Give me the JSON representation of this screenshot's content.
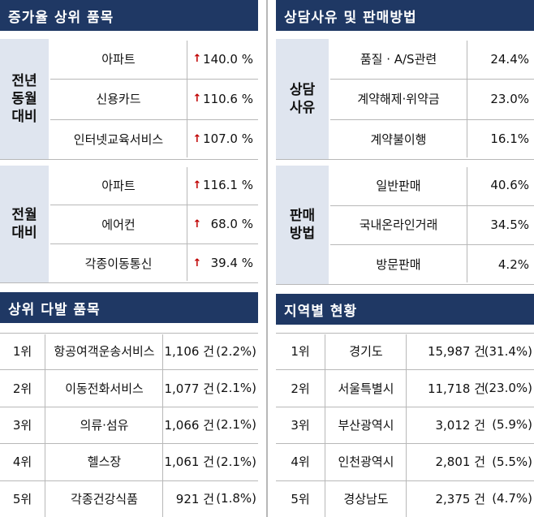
{
  "increase": {
    "title": "증가율 상위 품목",
    "groups": [
      {
        "label": [
          "전년",
          "동월",
          "대비"
        ],
        "rows": [
          {
            "item": "아파트",
            "rate": "140.0 %"
          },
          {
            "item": "신용카드",
            "rate": "110.6 %"
          },
          {
            "item": "인터넷교육서비스",
            "rate": "107.0 %"
          }
        ]
      },
      {
        "label": [
          "전월",
          "대비"
        ],
        "rows": [
          {
            "item": "아파트",
            "rate": "116.1 %"
          },
          {
            "item": "에어컨",
            "rate": "68.0 %"
          },
          {
            "item": "각종이동통신",
            "rate": "39.4 %"
          }
        ]
      }
    ]
  },
  "consult": {
    "title": "상담사유 및 판매방법",
    "groups": [
      {
        "label": [
          "상담",
          "사유"
        ],
        "rows": [
          {
            "item": "품질 · A/S관련",
            "share": "24.4%"
          },
          {
            "item": "계약해제·위약금",
            "share": "23.0%"
          },
          {
            "item": "계약불이행",
            "share": "16.1%"
          }
        ]
      },
      {
        "label": [
          "판매",
          "방법"
        ],
        "rows": [
          {
            "item": "일반판매",
            "share": "40.6%"
          },
          {
            "item": "국내온라인거래",
            "share": "34.5%"
          },
          {
            "item": "방문판매",
            "share": "4.2%"
          }
        ]
      }
    ]
  },
  "top_items": {
    "title": "상위 다발 품목",
    "rows": [
      {
        "rank": "1위",
        "item": "항공여객운송서비스",
        "count": "1,106 건",
        "share": "(2.2%)"
      },
      {
        "rank": "2위",
        "item": "이동전화서비스",
        "count": "1,077 건",
        "share": "(2.1%)"
      },
      {
        "rank": "3위",
        "item": "의류·섬유",
        "count": "1,066 건",
        "share": "(2.1%)"
      },
      {
        "rank": "4위",
        "item": "헬스장",
        "count": "1,061 건",
        "share": "(2.1%)"
      },
      {
        "rank": "5위",
        "item": "각종건강식품",
        "count": "921 건",
        "share": "(1.8%)"
      }
    ]
  },
  "regions": {
    "title": "지역별 현황",
    "rows": [
      {
        "rank": "1위",
        "item": "경기도",
        "count": "15,987 건",
        "share": "(31.4%)"
      },
      {
        "rank": "2위",
        "item": "서울특별시",
        "count": "11,718 건",
        "share": "(23.0%)"
      },
      {
        "rank": "3위",
        "item": "부산광역시",
        "count": "3,012 건",
        "share": "(5.9%)"
      },
      {
        "rank": "4위",
        "item": "인천광역시",
        "count": "2,801 건",
        "share": "(5.5%)"
      },
      {
        "rank": "5위",
        "item": "경상남도",
        "count": "2,375 건",
        "share": "(4.7%)"
      }
    ]
  }
}
